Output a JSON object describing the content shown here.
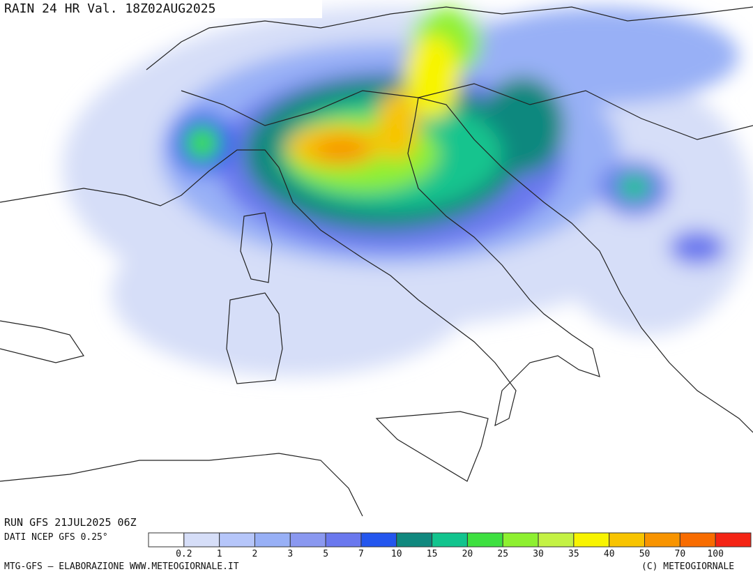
{
  "header": {
    "title": "RAIN 24 HR Val. 18Z02AUG2025"
  },
  "footer": {
    "run": "RUN GFS 21JUL2025 06Z",
    "source": "DATI NCEP GFS 0.25°",
    "credit": "MTG-GFS – ELABORAZIONE WWW.METEOGIORNALE.IT",
    "copyright": "(C) METEOGIORNALE"
  },
  "legend": {
    "colors": [
      "#ffffff",
      "#d6def8",
      "#b6c6fa",
      "#98b0f6",
      "#8a98f0",
      "#6a78ee",
      "#2456ee",
      "#10887e",
      "#12c48e",
      "#3ee040",
      "#8ef030",
      "#c4f244",
      "#f8f400",
      "#f8c400",
      "#f89400",
      "#f86c00",
      "#f42414"
    ],
    "labels": [
      "0.2",
      "1",
      "2",
      "3",
      "5",
      "7",
      "10",
      "15",
      "20",
      "25",
      "30",
      "35",
      "40",
      "50",
      "70",
      "100"
    ]
  }
}
